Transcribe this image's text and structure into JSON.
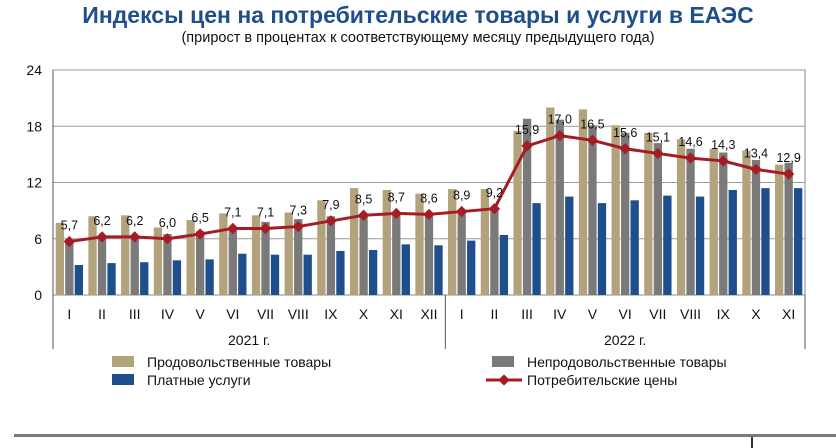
{
  "chart_data": {
    "type": "bar",
    "title": "Индексы цен на потребительские товары и услуги в ЕАЭС",
    "subtitle": "(прирост в процентах к соответствующему месяцу предыдущего года)",
    "categories": [
      "I",
      "II",
      "III",
      "IV",
      "V",
      "VI",
      "VII",
      "VIII",
      "IX",
      "X",
      "XI",
      "XII",
      "I",
      "II",
      "III",
      "IV",
      "V",
      "VI",
      "VII",
      "VIII",
      "IX",
      "X",
      "XI"
    ],
    "groups": [
      {
        "label": "2021 г.",
        "count": 12
      },
      {
        "label": "2022 г.",
        "count": 11
      }
    ],
    "ylim": [
      0,
      24
    ],
    "yticks": [
      0,
      6,
      12,
      18,
      24
    ],
    "grid": true,
    "legend_position": "bottom",
    "series": [
      {
        "name": "Продовольственные товары",
        "type": "bar",
        "color": "#b3a37d",
        "values": [
          7.7,
          8.4,
          8.5,
          7.2,
          8.0,
          8.7,
          8.5,
          8.8,
          10.1,
          11.4,
          11.2,
          10.8,
          11.3,
          11.3,
          17.5,
          20.0,
          19.8,
          18.1,
          17.3,
          16.6,
          15.6,
          15.4,
          13.9
        ]
      },
      {
        "name": "Непродовольственные товары",
        "type": "bar",
        "color": "#7a7a7a",
        "values": [
          5.9,
          6.1,
          6.2,
          6.5,
          6.8,
          7.3,
          7.8,
          8.1,
          8.4,
          8.6,
          8.6,
          8.6,
          8.7,
          9.4,
          18.8,
          18.7,
          18.1,
          17.3,
          16.2,
          15.6,
          15.2,
          14.4,
          14.1
        ]
      },
      {
        "name": "Платные услуги",
        "type": "bar",
        "color": "#1f4e8c",
        "values": [
          3.2,
          3.4,
          3.5,
          3.7,
          3.8,
          4.4,
          4.3,
          4.3,
          4.7,
          4.8,
          5.4,
          5.3,
          5.8,
          6.4,
          9.8,
          10.5,
          9.8,
          10.1,
          10.6,
          10.5,
          11.2,
          11.4,
          11.4
        ]
      },
      {
        "name": "Потребительские цены",
        "type": "line",
        "color": "#a51c24",
        "values": [
          5.7,
          6.2,
          6.2,
          6.0,
          6.5,
          7.1,
          7.1,
          7.3,
          7.9,
          8.5,
          8.7,
          8.6,
          8.9,
          9.2,
          15.9,
          17.0,
          16.5,
          15.6,
          15.1,
          14.6,
          14.3,
          13.4,
          12.9
        ],
        "labels": [
          "5,7",
          "6,2",
          "6,2",
          "6,0",
          "6,5",
          "7,1",
          "7,1",
          "7,3",
          "7,9",
          "8,5",
          "8,7",
          "8,6",
          "8,9",
          "9,2",
          "15,9",
          "17,0",
          "16,5",
          "15,6",
          "15,1",
          "14,6",
          "14,3",
          "13,4",
          "12,9"
        ]
      }
    ]
  }
}
